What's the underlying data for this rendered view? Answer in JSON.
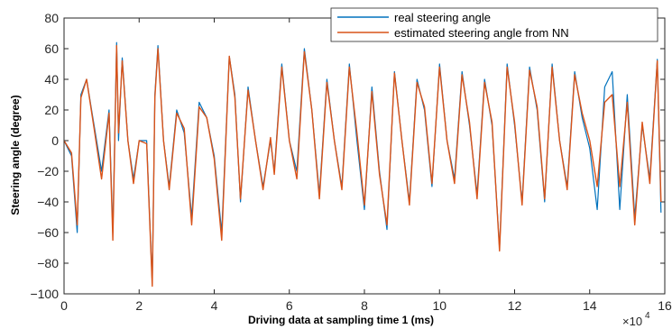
{
  "chart_data": {
    "type": "line",
    "title": "",
    "xlabel": "Driving data at sampling time 1 (ms)",
    "ylabel": "Steering angle (degree)",
    "x_exponent_label": "×10",
    "x_exponent_power": "4",
    "xlim": [
      0,
      16
    ],
    "ylim": [
      -100,
      80
    ],
    "xticks": [
      "0",
      "2",
      "4",
      "6",
      "8",
      "10",
      "12",
      "14",
      "16"
    ],
    "yticks": [
      "-100",
      "-80",
      "-60",
      "-40",
      "-20",
      "0",
      "20",
      "40",
      "60",
      "80"
    ],
    "legend_position": "top-right",
    "colors": {
      "real": "#0072BD",
      "estimated": "#D95319"
    },
    "series": [
      {
        "name": "real steering angle",
        "x": [
          0,
          0.2,
          0.35,
          0.45,
          0.6,
          0.8,
          1.0,
          1.2,
          1.3,
          1.4,
          1.45,
          1.55,
          1.7,
          1.85,
          2.0,
          2.2,
          2.35,
          2.42,
          2.5,
          2.65,
          2.8,
          3.0,
          3.2,
          3.4,
          3.6,
          3.8,
          4.0,
          4.2,
          4.4,
          4.55,
          4.7,
          4.9,
          5.1,
          5.3,
          5.5,
          5.6,
          5.8,
          6.0,
          6.2,
          6.4,
          6.6,
          6.8,
          7.0,
          7.2,
          7.4,
          7.6,
          7.8,
          8.0,
          8.2,
          8.4,
          8.6,
          8.8,
          9.0,
          9.2,
          9.4,
          9.6,
          9.8,
          10.0,
          10.2,
          10.4,
          10.6,
          10.8,
          11.0,
          11.2,
          11.4,
          11.6,
          11.8,
          12.0,
          12.2,
          12.4,
          12.6,
          12.8,
          13.0,
          13.2,
          13.4,
          13.6,
          13.8,
          14.0,
          14.2,
          14.4,
          14.6,
          14.8,
          15.0,
          15.2,
          15.4,
          15.6,
          15.8,
          15.9
        ],
        "y": [
          0,
          -10,
          -60,
          30,
          40,
          10,
          -20,
          20,
          -60,
          64,
          0,
          54,
          0,
          -25,
          0,
          0,
          -93,
          30,
          62,
          0,
          -30,
          20,
          5,
          -50,
          25,
          15,
          -10,
          -60,
          55,
          30,
          -40,
          35,
          0,
          -30,
          0,
          -20,
          50,
          0,
          -20,
          60,
          20,
          -35,
          40,
          0,
          -30,
          50,
          0,
          -45,
          35,
          -20,
          -58,
          45,
          0,
          -40,
          40,
          20,
          -30,
          50,
          0,
          -25,
          45,
          10,
          -35,
          40,
          10,
          -70,
          50,
          10,
          -40,
          48,
          20,
          -40,
          50,
          0,
          -30,
          45,
          15,
          -5,
          -45,
          35,
          45,
          -45,
          30,
          -50,
          10,
          -25,
          53,
          -47
        ]
      },
      {
        "name": "estimated steering angle from NN",
        "x": [
          0,
          0.2,
          0.35,
          0.45,
          0.6,
          0.8,
          1.0,
          1.2,
          1.3,
          1.4,
          1.45,
          1.55,
          1.7,
          1.85,
          2.0,
          2.2,
          2.35,
          2.42,
          2.5,
          2.65,
          2.8,
          3.0,
          3.2,
          3.4,
          3.6,
          3.8,
          4.0,
          4.2,
          4.4,
          4.55,
          4.7,
          4.9,
          5.1,
          5.3,
          5.5,
          5.6,
          5.8,
          6.0,
          6.2,
          6.4,
          6.6,
          6.8,
          7.0,
          7.2,
          7.4,
          7.6,
          7.8,
          8.0,
          8.2,
          8.4,
          8.6,
          8.8,
          9.0,
          9.2,
          9.4,
          9.6,
          9.8,
          10.0,
          10.2,
          10.4,
          10.6,
          10.8,
          11.0,
          11.2,
          11.4,
          11.6,
          11.8,
          12.0,
          12.2,
          12.4,
          12.6,
          12.8,
          13.0,
          13.2,
          13.4,
          13.6,
          13.8,
          14.0,
          14.2,
          14.4,
          14.6,
          14.8,
          15.0,
          15.2,
          15.4,
          15.6,
          15.8,
          15.9
        ],
        "y": [
          0,
          -8,
          -55,
          28,
          40,
          8,
          -25,
          18,
          -65,
          62,
          5,
          52,
          0,
          -28,
          0,
          -2,
          -95,
          28,
          60,
          0,
          -32,
          18,
          8,
          -55,
          22,
          15,
          -12,
          -65,
          55,
          28,
          -38,
          33,
          0,
          -32,
          2,
          -22,
          48,
          0,
          -25,
          58,
          20,
          -38,
          38,
          0,
          -32,
          48,
          5,
          -42,
          32,
          -22,
          -55,
          44,
          0,
          -42,
          38,
          22,
          -28,
          48,
          0,
          -28,
          43,
          12,
          -38,
          38,
          12,
          -72,
          48,
          12,
          -42,
          46,
          22,
          -38,
          48,
          0,
          -32,
          43,
          18,
          0,
          -30,
          25,
          30,
          -30,
          25,
          -55,
          12,
          -28,
          52,
          -40
        ]
      }
    ]
  }
}
